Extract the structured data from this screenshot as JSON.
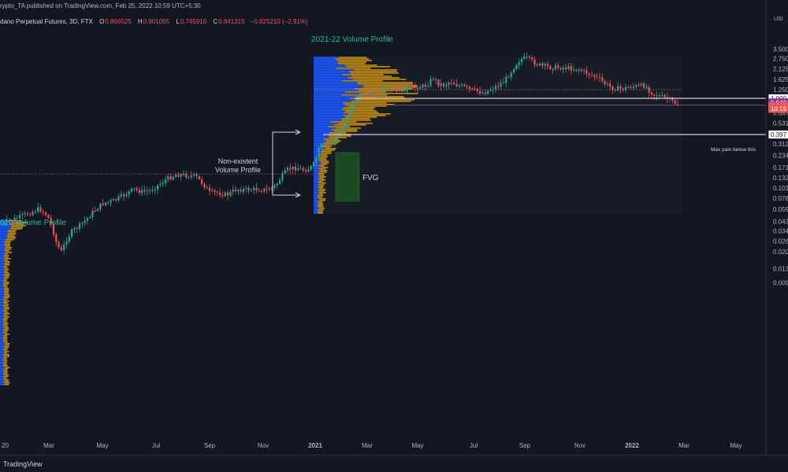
{
  "header": {
    "published": "rypto_TA published on TradingView.com, Feb 25, 2022 10:59 UTC+5:30",
    "symbol": "dano Perpetual Futures, 3D, FTX",
    "o_label": "O",
    "o_value": "0.866525",
    "h_label": "H",
    "h_value": "0.901055",
    "l_label": "L",
    "l_value": "0.745910",
    "c_label": "C",
    "c_value": "0.841315",
    "change": "−0.025210 (−2.91%)"
  },
  "currency_label": "USI",
  "footer_text": "TradingView",
  "colors": {
    "background": "#131722",
    "up": "#26a69a",
    "down": "#ef5350",
    "profile_blue": "#2962ff",
    "profile_gold": "#c99a2e",
    "purple": "#9c27b0",
    "label_green": "#2ab79b"
  },
  "annotations": {
    "profile_2021": "2021-22 Volume Profile",
    "profile_2020": "020 Volume Profile",
    "non_existent_line1": "Non-existent",
    "non_existent_line2": "Volume Profile",
    "fvg": "FVG",
    "max_pain": "Max pain below this"
  },
  "chart_data": {
    "type": "candlestick",
    "scale": "log",
    "y_ticks": [
      "3.500",
      "2.750",
      "2.125",
      "1.625",
      "1.250",
      "0.687",
      "0.531",
      "0.312",
      "0.234",
      "0.171",
      "0.132",
      "0.101",
      "0.078",
      "0.059",
      "0.043",
      "0.034",
      "0.026",
      "0.020",
      "0.013",
      "0.009"
    ],
    "x_ticks": [
      "20",
      "Mar",
      "May",
      "Jul",
      "Sep",
      "Nov",
      "2021",
      "Mar",
      "May",
      "Jul",
      "Sep",
      "Nov",
      "2022",
      "Mar",
      "May"
    ],
    "price_labels": {
      "level_high": "1.000",
      "purple": "0.842",
      "last": "0.841",
      "countdown": "1d 19",
      "level_low": "0.397"
    },
    "levels": [
      1.0,
      0.842,
      0.397
    ],
    "poc_levels": [
      1.25,
      0.145
    ],
    "current_price": 0.841315,
    "path": [
      [
        0,
        0.04
      ],
      [
        16,
        0.045
      ],
      [
        24,
        0.048
      ],
      [
        34,
        0.052
      ],
      [
        50,
        0.06
      ],
      [
        60,
        0.05
      ],
      [
        66,
        0.038
      ],
      [
        72,
        0.024
      ],
      [
        78,
        0.02
      ],
      [
        84,
        0.027
      ],
      [
        92,
        0.034
      ],
      [
        100,
        0.038
      ],
      [
        110,
        0.046
      ],
      [
        118,
        0.055
      ],
      [
        130,
        0.068
      ],
      [
        146,
        0.074
      ],
      [
        160,
        0.088
      ],
      [
        170,
        0.098
      ],
      [
        180,
        0.092
      ],
      [
        190,
        0.095
      ],
      [
        200,
        0.108
      ],
      [
        212,
        0.128
      ],
      [
        224,
        0.143
      ],
      [
        236,
        0.14
      ],
      [
        248,
        0.137
      ],
      [
        258,
        0.112
      ],
      [
        266,
        0.09
      ],
      [
        276,
        0.09
      ],
      [
        288,
        0.085
      ],
      [
        300,
        0.098
      ],
      [
        314,
        0.097
      ],
      [
        326,
        0.098
      ],
      [
        340,
        0.096
      ],
      [
        350,
        0.108
      ],
      [
        358,
        0.138
      ],
      [
        366,
        0.165
      ],
      [
        376,
        0.17
      ],
      [
        386,
        0.16
      ],
      [
        394,
        0.17
      ],
      [
        398,
        0.185
      ],
      [
        402,
        0.23
      ],
      [
        406,
        0.29
      ],
      [
        410,
        0.305
      ],
      [
        416,
        0.312
      ],
      [
        426,
        0.355
      ],
      [
        432,
        0.42
      ],
      [
        440,
        0.6
      ],
      [
        446,
        0.82
      ],
      [
        452,
        0.95
      ],
      [
        460,
        1.15
      ],
      [
        470,
        1.19
      ],
      [
        480,
        1.18
      ],
      [
        490,
        1.2
      ],
      [
        500,
        1.25
      ],
      [
        510,
        1.26
      ],
      [
        520,
        1.28
      ],
      [
        530,
        1.35
      ],
      [
        538,
        1.35
      ],
      [
        544,
        1.48
      ],
      [
        550,
        1.7
      ],
      [
        556,
        1.45
      ],
      [
        564,
        1.4
      ],
      [
        572,
        1.55
      ],
      [
        580,
        1.4
      ],
      [
        588,
        1.35
      ],
      [
        596,
        1.25
      ],
      [
        606,
        1.2
      ],
      [
        614,
        1.15
      ],
      [
        620,
        1.23
      ],
      [
        630,
        1.35
      ],
      [
        640,
        1.55
      ],
      [
        648,
        1.95
      ],
      [
        654,
        2.35
      ],
      [
        660,
        2.7
      ],
      [
        668,
        2.8
      ],
      [
        676,
        2.55
      ],
      [
        686,
        2.3
      ],
      [
        700,
        2.2
      ],
      [
        712,
        2.2
      ],
      [
        724,
        2.15
      ],
      [
        734,
        2.1
      ],
      [
        742,
        1.95
      ],
      [
        752,
        1.8
      ],
      [
        762,
        1.6
      ],
      [
        770,
        1.4
      ],
      [
        778,
        1.3
      ],
      [
        790,
        1.27
      ],
      [
        800,
        1.35
      ],
      [
        810,
        1.35
      ],
      [
        818,
        1.4
      ],
      [
        822,
        1.27
      ],
      [
        830,
        1.1
      ],
      [
        838,
        1.05
      ],
      [
        846,
        1.0
      ],
      [
        852,
        0.93
      ],
      [
        858,
        0.87
      ],
      [
        862,
        0.841
      ]
    ]
  }
}
